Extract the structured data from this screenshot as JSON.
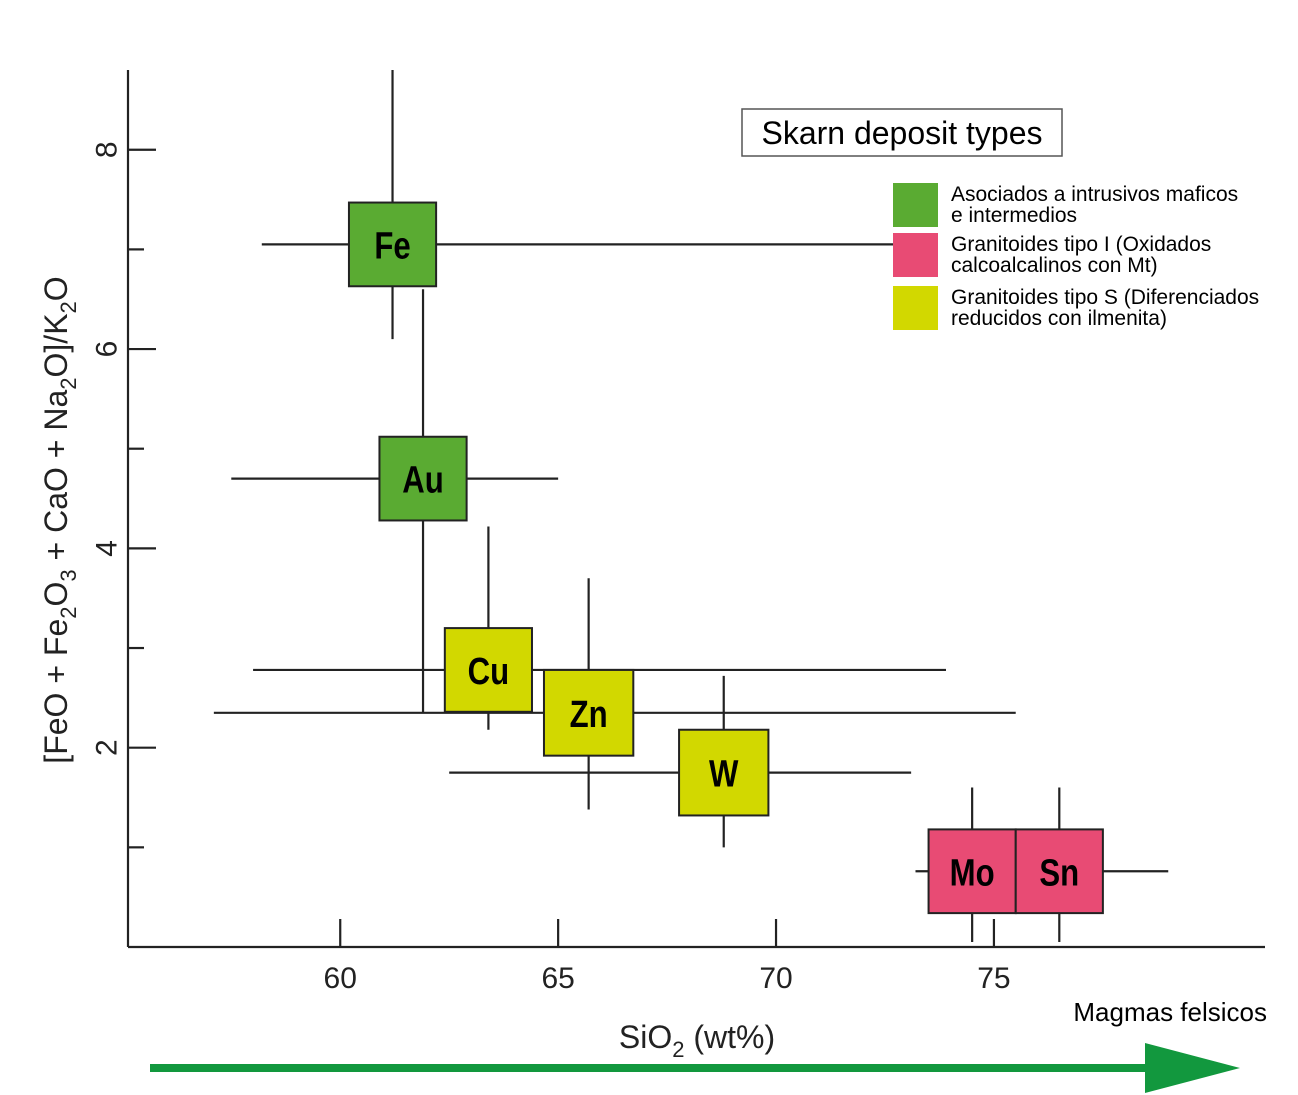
{
  "chart_data": {
    "type": "scatter",
    "title": "Skarn deposit types",
    "xlabel": "SiO",
    "xlabel_sub": "2",
    "xlabel_tail": " (wt%)",
    "ylabel_parts": [
      {
        "t": "[FeO + Fe"
      },
      {
        "t": "2",
        "sub": true
      },
      {
        "t": "O"
      },
      {
        "t": "3",
        "sub": true
      },
      {
        "t": " + CaO + Na"
      },
      {
        "t": "2",
        "sub": true
      },
      {
        "t": "O]/K"
      },
      {
        "t": "2",
        "sub": true
      },
      {
        "t": "O"
      }
    ],
    "xlim": [
      55.13,
      81.22
    ],
    "ylim": [
      0,
      8.8
    ],
    "x_ticks": [
      60,
      65,
      70,
      75
    ],
    "y_ticks": [
      2,
      4,
      6,
      8
    ],
    "y_minor_ticks": [
      1,
      3,
      5,
      7
    ],
    "grid": false,
    "legend_position": "top-right",
    "series": [
      {
        "name": "Asociados a intrusivos maficos e intermedios",
        "legend_lines": [
          "Asociados a intrusivos maficos",
          "e intermedios"
        ],
        "color": "#5aab32"
      },
      {
        "name": "Granitoides tipo I (Oxidados calcoalcalinos con Mt)",
        "legend_lines": [
          "Granitoides tipo I (Oxidados",
          "calcoalcalinos con Mt)"
        ],
        "color": "#e84b74"
      },
      {
        "name": "Granitoides tipo S (Diferenciados reducidos con ilmenita)",
        "legend_lines": [
          "Granitoides tipo S (Diferenciados",
          "reducidos con ilmenita)"
        ],
        "color": "#d2d800"
      }
    ],
    "points": [
      {
        "label": "Fe",
        "series": 0,
        "x": 61.2,
        "y": 7.05,
        "xerr": [
          58.2,
          73.0
        ],
        "yerr": [
          6.1,
          8.8
        ],
        "bw": 2.0,
        "bh": 0.84
      },
      {
        "label": "Au",
        "series": 0,
        "x": 61.9,
        "y": 4.7,
        "xerr": [
          57.5,
          65.0
        ],
        "yerr": [
          2.35,
          6.6
        ],
        "bw": 2.0,
        "bh": 0.84
      },
      {
        "label": "Cu",
        "series": 2,
        "x": 63.4,
        "y": 2.78,
        "xerr": [
          58.0,
          73.9
        ],
        "yerr": [
          2.18,
          4.22
        ],
        "bw": 2.0,
        "bh": 0.84
      },
      {
        "label": "Zn",
        "series": 2,
        "x": 65.7,
        "y": 2.35,
        "xerr": [
          57.1,
          75.5
        ],
        "yerr": [
          1.38,
          3.7
        ],
        "bw": 2.05,
        "bh": 0.86
      },
      {
        "label": "W",
        "series": 2,
        "x": 68.8,
        "y": 1.75,
        "xerr": [
          62.5,
          73.1
        ],
        "yerr": [
          1.0,
          2.72
        ],
        "bw": 2.05,
        "bh": 0.86
      },
      {
        "label": "Mo",
        "series": 1,
        "x": 74.5,
        "y": 0.76,
        "xerr": [
          73.2,
          76.0
        ],
        "yerr": [
          0.05,
          1.6
        ],
        "bw": 2.0,
        "bh": 0.84
      },
      {
        "label": "Sn",
        "series": 1,
        "x": 76.5,
        "y": 0.76,
        "xerr": [
          75.8,
          79.0
        ],
        "yerr": [
          0.05,
          1.6
        ],
        "bw": 2.0,
        "bh": 0.84
      }
    ],
    "arrow_label": "Magmas felsicos",
    "arrow_color": "#12983e"
  }
}
